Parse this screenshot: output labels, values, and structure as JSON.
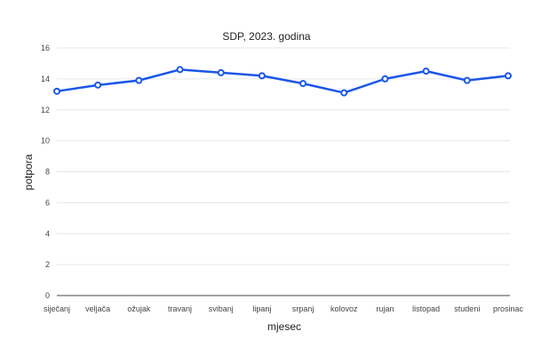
{
  "chart_data": {
    "type": "line",
    "title": "SDP, 2023. godina",
    "xlabel": "mjesec",
    "ylabel": "potpora",
    "categories": [
      "siječanj",
      "veljača",
      "ožujak",
      "travanj",
      "svibanj",
      "lipanj",
      "srpanj",
      "kolovoz",
      "rujan",
      "listopad",
      "studeni",
      "prosinac"
    ],
    "series": [
      {
        "values": [
          13.2,
          13.6,
          13.9,
          14.6,
          14.4,
          14.2,
          13.7,
          13.1,
          14.0,
          14.5,
          13.9,
          14.2
        ]
      }
    ],
    "ylim": [
      0,
      16
    ],
    "yticks": [
      "0",
      "2",
      "4",
      "6",
      "8",
      "10",
      "12",
      "14",
      "16"
    ],
    "grid": true,
    "legend": "none",
    "colors": {
      "line": "#1a56e8",
      "marker_fill": "#ffffff"
    }
  }
}
